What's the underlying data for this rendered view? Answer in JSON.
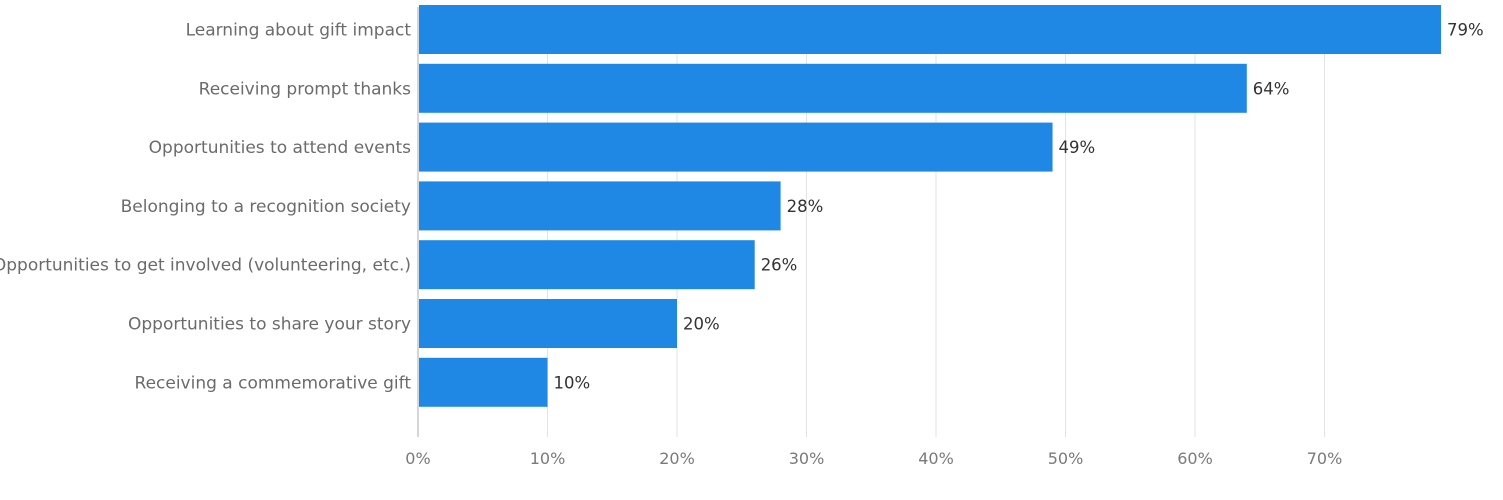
{
  "chart_data": {
    "type": "bar",
    "orientation": "horizontal",
    "categories": [
      "Learning about gift impact",
      "Receiving prompt thanks",
      "Opportunities to attend events",
      "Belonging to a recognition society",
      "Opportunities to get involved (volunteering, etc.)",
      "Opportunities to share your story",
      "Receiving a commemorative gift"
    ],
    "values": [
      79,
      64,
      49,
      28,
      26,
      20,
      10
    ],
    "value_labels": [
      "79%",
      "64%",
      "49%",
      "28%",
      "26%",
      "20%",
      "10%"
    ],
    "x_ticks": [
      0,
      10,
      20,
      30,
      40,
      50,
      60,
      70
    ],
    "x_tick_labels": [
      "0%",
      "10%",
      "20%",
      "30%",
      "40%",
      "50%",
      "60%",
      "70%"
    ],
    "xlim": [
      0,
      79
    ],
    "title": "",
    "xlabel": "",
    "ylabel": "",
    "grid": true,
    "legend": "none",
    "colors": {
      "bar": "#1f88e5",
      "grid": "#e3e3e3",
      "axis": "#c8c8c8",
      "category_text": "#6b6b6b",
      "tick_text": "#7a7a7a",
      "value_text": "#333333"
    }
  }
}
